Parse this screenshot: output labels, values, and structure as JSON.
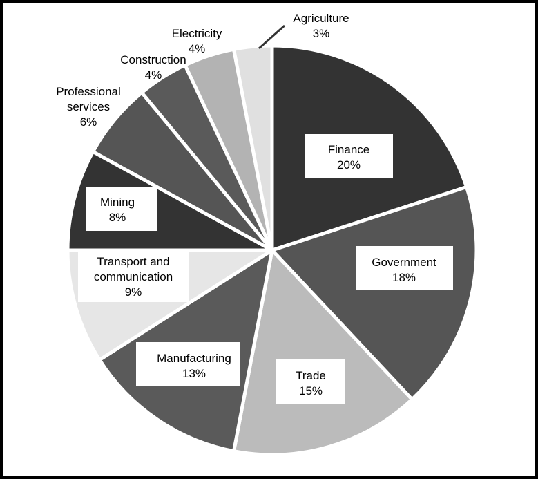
{
  "chart_data": {
    "type": "pie",
    "start": "12 o'clock, clockwise",
    "slices": [
      {
        "label": "Finance",
        "value": 20,
        "display": "20%",
        "color": "#333333"
      },
      {
        "label": "Government",
        "value": 18,
        "display": "18%",
        "color": "#555555"
      },
      {
        "label": "Trade",
        "value": 15,
        "display": "15%",
        "color": "#bbbbbb"
      },
      {
        "label": "Manufacturing",
        "value": 13,
        "display": "13%",
        "color": "#5a5a5a"
      },
      {
        "label": "Transport and communication",
        "value": 9,
        "display": "9%",
        "color": "#e6e6e6"
      },
      {
        "label": "Mining",
        "value": 8,
        "display": "8%",
        "color": "#333333"
      },
      {
        "label": "Professional services",
        "value": 6,
        "display": "6%",
        "color": "#555555"
      },
      {
        "label": "Construction",
        "value": 4,
        "display": "4%",
        "color": "#5a5a5a"
      },
      {
        "label": "Electricity",
        "value": 4,
        "display": "4%",
        "color": "#b3b3b3"
      },
      {
        "label": "Agriculture",
        "value": 3,
        "display": "3%",
        "color": "#e0e0e0"
      }
    ]
  }
}
